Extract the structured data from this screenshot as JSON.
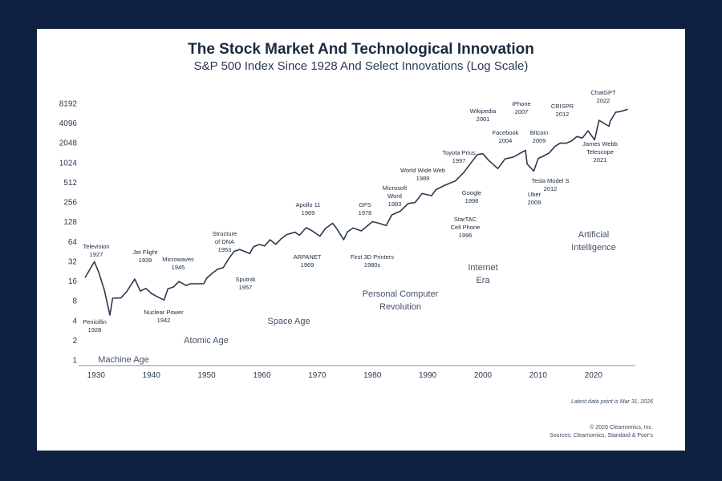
{
  "title": "The Stock Market And Technological Innovation",
  "subtitle": "S&P 500 Index Since 1928 And Select Innovations (Log Scale)",
  "footer": {
    "latest": "Latest data point is Mar 31, 2026",
    "copyright": "© 2026 Clearnomics, Inc.",
    "sources": "Sources: Clearnomics, Standard & Poor's"
  },
  "chart_data": {
    "type": "line",
    "series": [
      {
        "x": [
          1928,
          1929.7,
          1930.5,
          1931.5,
          1932.5,
          1933,
          1934.5,
          1935.5,
          1937,
          1938,
          1939,
          1940,
          1941,
          1942.3,
          1943,
          1944,
          1945,
          1946.3,
          1947,
          1948,
          1949.5,
          1950,
          1951,
          1952,
          1953,
          1954,
          1955,
          1956,
          1957.8,
          1958.5,
          1959.5,
          1960.5,
          1961.5,
          1962.5,
          1963.5,
          1964.5,
          1966,
          1966.8,
          1968,
          1969,
          1970.5,
          1971.5,
          1972.8,
          1973.5,
          1974.8,
          1975.5,
          1976.5,
          1978,
          1980,
          1981,
          1982.5,
          1983.5,
          1985,
          1986.5,
          1987.7,
          1989,
          1990.7,
          1991.5,
          1993,
          1995,
          1996.5,
          1998,
          1999,
          2000,
          2001,
          2002.7,
          2004,
          2005.5,
          2007.7,
          2008,
          2009.2,
          2010,
          2011,
          2012,
          2013,
          2014,
          2015,
          2016,
          2017,
          2018,
          2019,
          2020.2,
          2021,
          2022.8,
          2023,
          2024,
          2025,
          2026.2
        ],
        "y": [
          18,
          32,
          22,
          12,
          5,
          9,
          9,
          11,
          17,
          11,
          12,
          10,
          9,
          8,
          12,
          13,
          16,
          14,
          15,
          15,
          15,
          18,
          21,
          24,
          25,
          34,
          44,
          47,
          41,
          53,
          58,
          56,
          70,
          60,
          73,
          84,
          90,
          80,
          103,
          92,
          75,
          98,
          118,
          100,
          68,
          91,
          105,
          96,
          133,
          127,
          115,
          165,
          185,
          240,
          245,
          335,
          310,
          385,
          450,
          535,
          725,
          1080,
          1400,
          1450,
          1150,
          850,
          1180,
          1240,
          1550,
          950,
          735,
          1150,
          1260,
          1420,
          1800,
          2060,
          2070,
          2250,
          2650,
          2500,
          3200,
          2300,
          4500,
          3600,
          4200,
          5800,
          6000,
          6500
        ]
      }
    ],
    "xlim": [
      1928,
      2027
    ],
    "ylim": [
      1,
      8192
    ],
    "log_scale_y": true,
    "x_ticks": [
      1930,
      1940,
      1950,
      1960,
      1970,
      1980,
      1990,
      2000,
      2010,
      2020
    ],
    "y_ticks": [
      1,
      2,
      4,
      8,
      16,
      32,
      64,
      128,
      256,
      512,
      1024,
      2048,
      4096,
      8192
    ],
    "grid": false,
    "line_color": "#2b3a4e",
    "annotations": [
      {
        "lines": [
          "Television",
          "1927"
        ]
      },
      {
        "lines": [
          "Penicillin",
          "1928"
        ]
      },
      {
        "lines": [
          "Jet Flight",
          "1939"
        ]
      },
      {
        "lines": [
          "Microwaves",
          "1945"
        ]
      },
      {
        "lines": [
          "Nuclear Power",
          "1942"
        ]
      },
      {
        "lines": [
          "Structure",
          "of DNA",
          "1953"
        ]
      },
      {
        "lines": [
          "Sputnik",
          "1957"
        ]
      },
      {
        "lines": [
          "Apollo 11",
          "1969"
        ]
      },
      {
        "lines": [
          "ARPANET",
          "1969"
        ]
      },
      {
        "lines": [
          "GPS",
          "1978"
        ]
      },
      {
        "lines": [
          "First 3D Printers",
          "1980s"
        ]
      },
      {
        "lines": [
          "Microsoft",
          "Word",
          "1983"
        ]
      },
      {
        "lines": [
          "World Wide Web",
          "1989"
        ]
      },
      {
        "lines": [
          "StarTAC",
          "Cell Phone",
          "1996"
        ]
      },
      {
        "lines": [
          "Toyota Prius",
          "1997"
        ]
      },
      {
        "lines": [
          "Google",
          "1998"
        ]
      },
      {
        "lines": [
          "Wikipedia",
          "2001"
        ]
      },
      {
        "lines": [
          "Facebook",
          "2004"
        ]
      },
      {
        "lines": [
          "iPhone",
          "2007"
        ]
      },
      {
        "lines": [
          "Bitcoin",
          "2009"
        ]
      },
      {
        "lines": [
          "Uber",
          "2009"
        ]
      },
      {
        "lines": [
          "CRISPR",
          "2012"
        ]
      },
      {
        "lines": [
          "Tesla Model S",
          "2012"
        ]
      },
      {
        "lines": [
          "ChatGPT",
          "2022"
        ]
      },
      {
        "lines": [
          "James Webb",
          "Telescope",
          "2021"
        ]
      }
    ],
    "eras": [
      {
        "lines": [
          "Machine Age"
        ]
      },
      {
        "lines": [
          "Atomic Age"
        ]
      },
      {
        "lines": [
          "Space Age"
        ]
      },
      {
        "lines": [
          "Personal Computer",
          "Revolution"
        ]
      },
      {
        "lines": [
          "Internet",
          "Era"
        ]
      },
      {
        "lines": [
          "Artificial",
          "Intelligence"
        ]
      }
    ]
  }
}
